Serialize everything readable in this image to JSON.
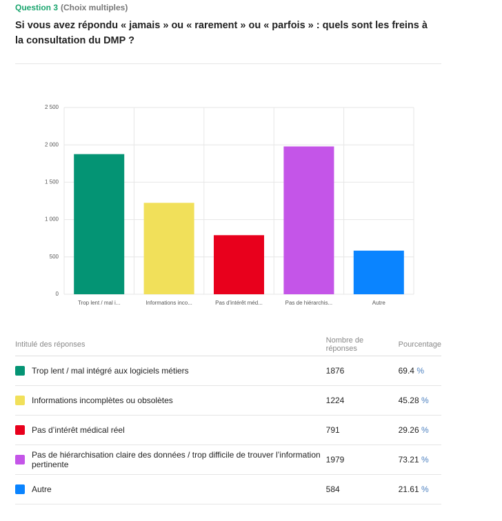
{
  "header": {
    "question": "Question 3",
    "qualifier": "(Choix multiples)",
    "title": "Si vous avez répondu « jamais » ou « rarement » ou « parfois » : quels sont les freins à la consultation du DMP ?"
  },
  "chart_data": {
    "type": "bar",
    "categories": [
      "Trop lent / mal i...",
      "Informations inco...",
      "Pas d'intérêt méd...",
      "Pas de hiérarchis...",
      "Autre"
    ],
    "values": [
      1876,
      1224,
      791,
      1979,
      584
    ],
    "colors": [
      "#049474",
      "#f1e05a",
      "#e8001c",
      "#c455e8",
      "#0a84ff"
    ],
    "ylim": [
      0,
      2500
    ],
    "yticks": [
      0,
      500,
      {
        "value": 1000,
        "label": "1 000"
      },
      {
        "value": 1500,
        "label": "1 500"
      },
      {
        "value": 2000,
        "label": "2 000"
      },
      {
        "value": 2500,
        "label": "2 500"
      }
    ],
    "grid": true
  },
  "table": {
    "headers": [
      "Intitulé des réponses",
      "Nombre de réponses",
      "Pourcentage"
    ],
    "unit": "%",
    "rows": [
      [
        "Trop lent / mal intégré aux logiciels métiers",
        1876,
        69.4
      ],
      [
        "Informations incomplètes ou obsolètes",
        1224,
        45.28
      ],
      [
        "Pas d’intérêt médical réel",
        791,
        29.26
      ],
      [
        "Pas de hiérarchisation claire des données / trop difficile de trouver l’information pertinente",
        1979,
        73.21
      ],
      [
        "Autre",
        584,
        21.61
      ]
    ]
  }
}
